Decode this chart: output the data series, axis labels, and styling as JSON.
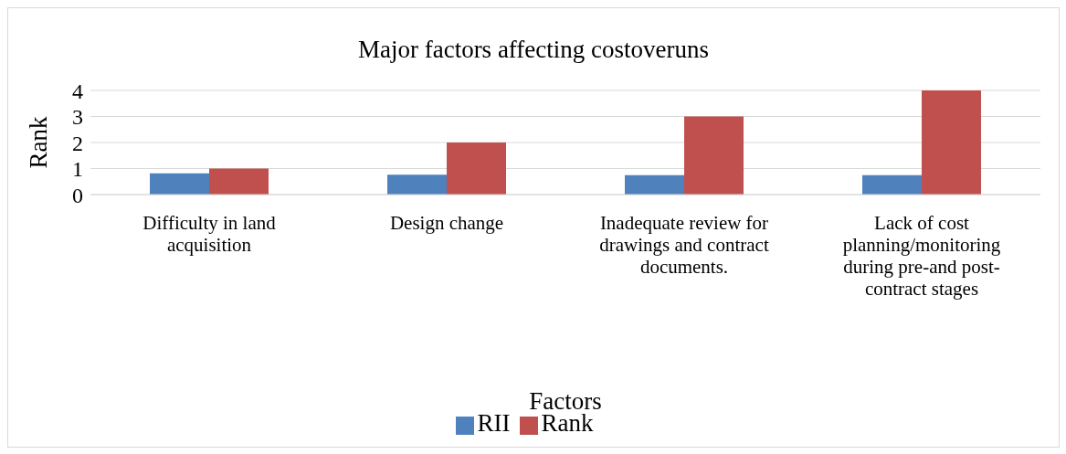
{
  "chart_data": {
    "type": "bar",
    "title": "Major factors affecting costoveruns",
    "xlabel": "Factors",
    "ylabel": "Rank",
    "categories": [
      "Difficulty in land acquisition",
      "Design change",
      "Inadequate review for drawings and contract documents.",
      "Lack of cost planning/monitoring during pre-and post-contract stages"
    ],
    "series": [
      {
        "name": "RII",
        "color": "#4f81bd",
        "values": [
          0.82,
          0.76,
          0.75,
          0.75
        ]
      },
      {
        "name": "Rank",
        "color": "#c0504d",
        "values": [
          1,
          2,
          3,
          4
        ]
      }
    ],
    "ylim": [
      0,
      4
    ],
    "yticks": [
      0,
      1,
      2,
      3,
      4
    ],
    "grid": "y",
    "legend": "bottom"
  }
}
